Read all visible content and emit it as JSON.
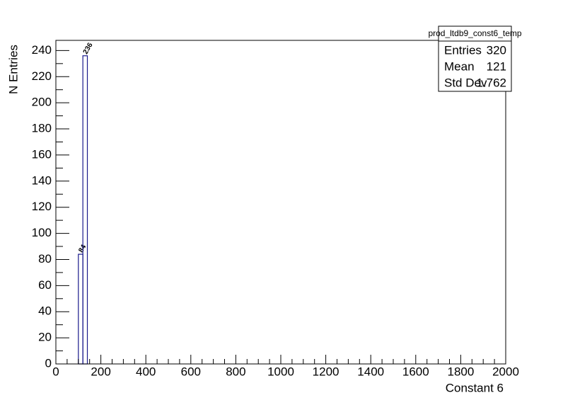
{
  "chart_data": {
    "type": "histogram",
    "x_label": "Constant 6",
    "y_label": "N Entries",
    "bins": [
      100,
      120,
      140
    ],
    "values": [
      84,
      236
    ],
    "color": "#1a1a8c",
    "xlim": [
      0,
      2000
    ],
    "xticks": [
      0,
      200,
      400,
      600,
      800,
      1000,
      1200,
      1400,
      1600,
      1800,
      2000
    ],
    "ylim": [
      0,
      247.8
    ],
    "yticks": [
      0,
      20,
      40,
      60,
      80,
      100,
      120,
      140,
      160,
      180,
      200,
      220,
      240
    ],
    "stats": {
      "title": "prod_ltdb9_const6_temp",
      "rows": [
        {
          "label": "Entries",
          "value": 320
        },
        {
          "label": "Mean",
          "value": 121
        },
        {
          "label": "Std Dev",
          "value": 1.762
        }
      ]
    }
  }
}
